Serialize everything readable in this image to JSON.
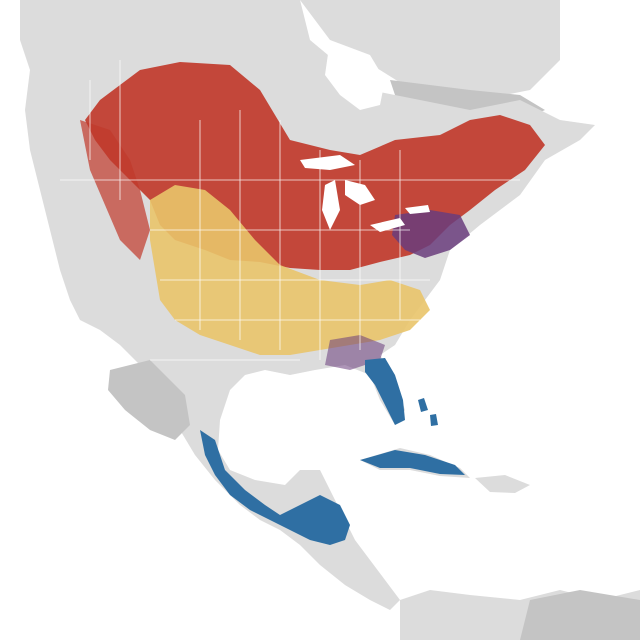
{
  "map": {
    "colors": {
      "background": "#ffffff",
      "land": "#dcdcdc",
      "land_dark": "#c4c4c4",
      "borders": "#ffffff",
      "breeding": "#c0392b",
      "nonbreeding": "#2f6fa3",
      "pre_breeding_migration": "#e9c46a",
      "post_breeding_migration": "#eedc9a",
      "year_round": "#6a3d7c"
    },
    "seasons": [
      {
        "id": "breeding",
        "color_key": "breeding"
      },
      {
        "id": "nonbreeding",
        "color_key": "nonbreeding"
      },
      {
        "id": "migration",
        "color_key": "pre_breeding_migration"
      },
      {
        "id": "year-round",
        "color_key": "year_round"
      }
    ]
  }
}
